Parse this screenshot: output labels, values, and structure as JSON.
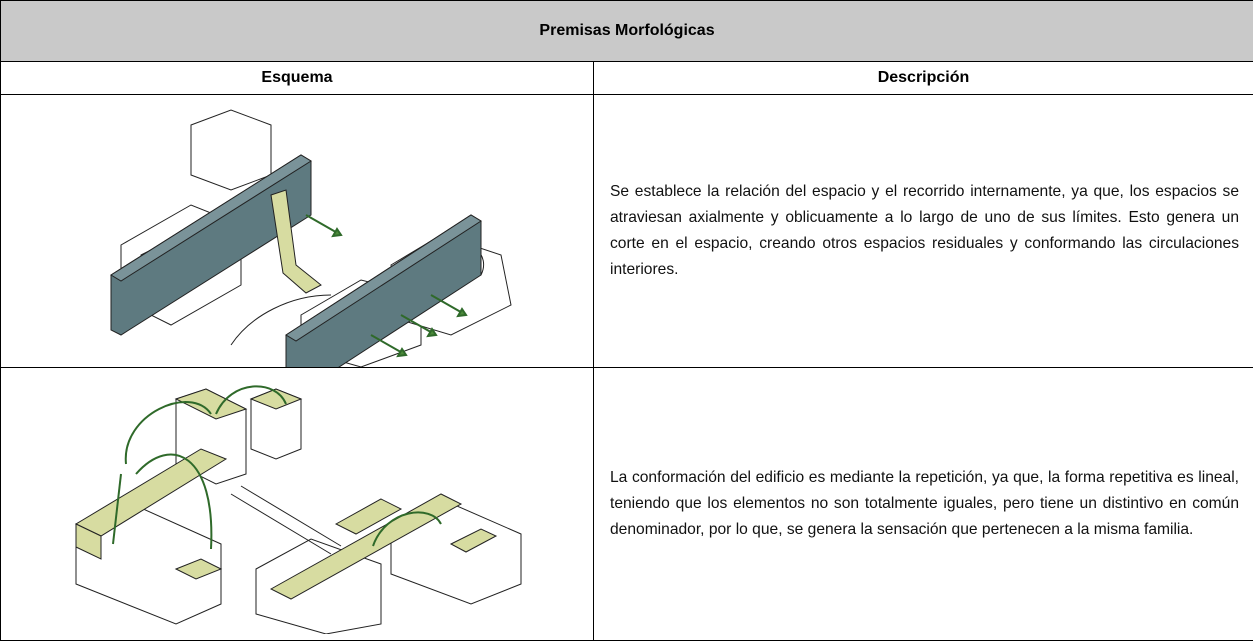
{
  "header": {
    "title": "Premisas Morfológicas"
  },
  "table": {
    "columns": [
      "Esquema",
      "Descripción"
    ],
    "rows": [
      {
        "description": "Se establece la relación del espacio y el recorrido internamente, ya que, los espacios se atraviesan axialmente y oblicuamente a lo largo de uno de sus límites. Esto genera un corte en el espacio, creando otros espacios residuales y conformando las circulaciones interiores."
      },
      {
        "description": "La conformación del edificio es mediante la repetición, ya que, la forma repetitiva es lineal, teniendo que los elementos no son totalmente iguales, pero tiene un distintivo en común denominador, por lo que, se genera la sensación que pertenecen a la misma familia."
      }
    ]
  }
}
